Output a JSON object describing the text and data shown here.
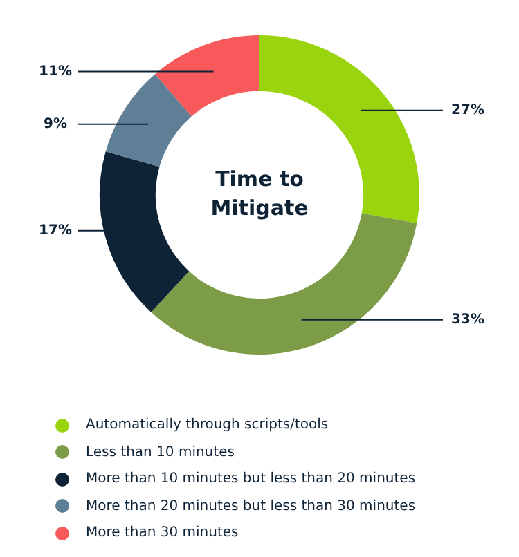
{
  "chart_data": {
    "type": "donut",
    "title": "Time to Mitigate",
    "categories": [
      "Automatically through scripts/tools",
      "Less than 10 minutes",
      "More than 10 minutes but less than 20 minutes",
      "More than 20 minutes but less than 30 minutes",
      "More than 30 minutes"
    ],
    "values": [
      27,
      33,
      17,
      9,
      11
    ],
    "colors": [
      "#99d40f",
      "#7c9c48",
      "#0f2337",
      "#5f7f96",
      "#f85a5b"
    ],
    "value_labels": [
      "27%",
      "33%",
      "17%",
      "9%",
      "11%"
    ],
    "legend": "bottom"
  }
}
